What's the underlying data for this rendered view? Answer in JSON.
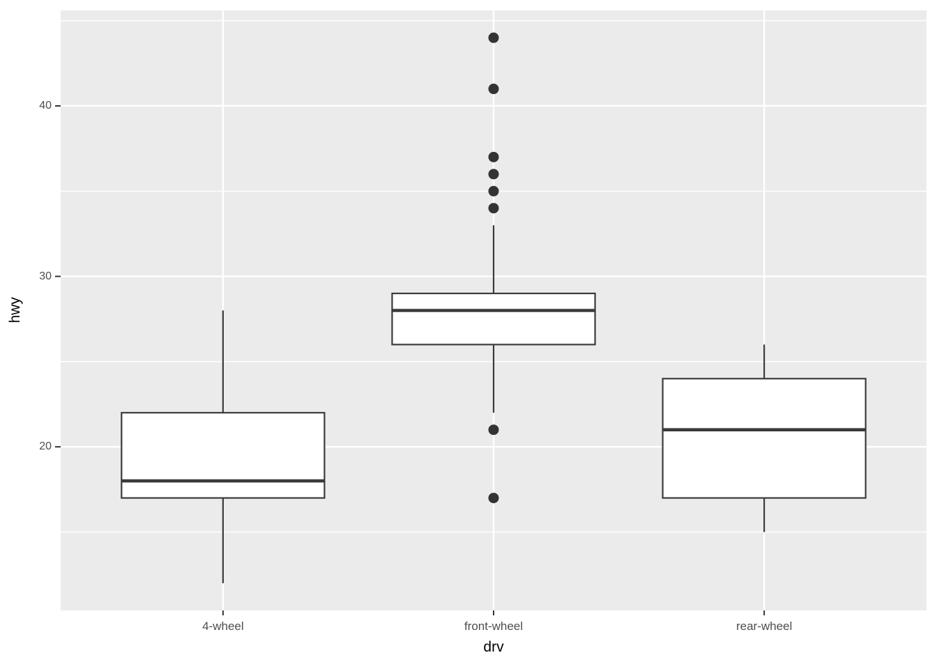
{
  "figure": {
    "background_color": "#FFFFFF"
  },
  "chart_data": {
    "type": "boxplot",
    "title": "",
    "xlabel": "drv",
    "ylabel": "hwy",
    "categories": [
      "4-wheel",
      "front-wheel",
      "rear-wheel"
    ],
    "y_major_ticks": [
      20,
      30,
      40
    ],
    "y_major_tick_labels": [
      "20",
      "30",
      "40"
    ],
    "y_minor_gridlines": [
      15,
      25,
      35,
      45
    ],
    "ylim": [
      10.4,
      45.6
    ],
    "grid": "horizontal major+minor, vertical major at category centers",
    "legend_position": "none",
    "box_width_fraction": 0.75,
    "series": [
      {
        "category": "4-wheel",
        "whisker_low": 12,
        "q1": 17,
        "median": 18,
        "q3": 22,
        "whisker_high": 28,
        "outliers": []
      },
      {
        "category": "front-wheel",
        "whisker_low": 22,
        "q1": 26,
        "median": 28,
        "q3": 29,
        "whisker_high": 33,
        "outliers": [
          44,
          41,
          37,
          36,
          35,
          34,
          21,
          17
        ]
      },
      {
        "category": "rear-wheel",
        "whisker_low": 15,
        "q1": 17,
        "median": 21,
        "q3": 24,
        "whisker_high": 26,
        "outliers": []
      }
    ],
    "colors": {
      "panel_background": "#EBEBEB",
      "gridline": "#FFFFFF",
      "box_stroke": "#3A3A3A",
      "box_fill": "#FFFFFF",
      "median_line": "#3A3A3A",
      "outlier_dot": "#333333",
      "tick_mark": "#333333",
      "axis_tick_text": "#4D4D4D",
      "axis_title_text": "#000000"
    }
  }
}
